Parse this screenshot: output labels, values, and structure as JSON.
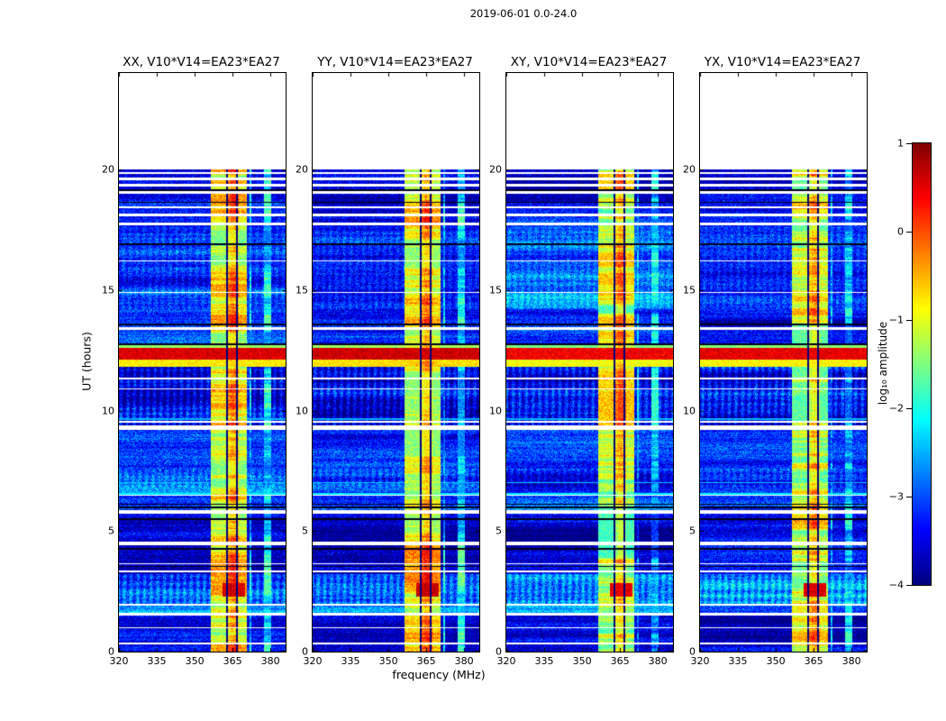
{
  "figure": {
    "title": "2019-06-01 0.0-24.0",
    "xlabel": "frequency (MHz)",
    "ylabel": "UT (hours)",
    "colorbar_label": "log₁₀ amplitude"
  },
  "panels": [
    {
      "title": "XX, V10*V14=EA23*EA27",
      "seed": 11,
      "rfi_offset": 0
    },
    {
      "title": "YY, V10*V14=EA23*EA27",
      "seed": 23,
      "rfi_offset": 0.12
    },
    {
      "title": "XY, V10*V14=EA23*EA27",
      "seed": 37,
      "rfi_offset": -0.25
    },
    {
      "title": "YX, V10*V14=EA23*EA27",
      "seed": 49,
      "rfi_offset": -0.12
    }
  ],
  "chart_data": {
    "type": "heatmap",
    "title": "2019-06-01 0.0-24.0",
    "xlabel": "frequency (MHz)",
    "ylabel": "UT (hours)",
    "colorbar_label": "log10 amplitude",
    "x_range": [
      320,
      386
    ],
    "y_range": [
      0,
      24
    ],
    "data_time_range": [
      0,
      20
    ],
    "x_ticks": [
      320,
      335,
      350,
      365,
      380
    ],
    "y_ticks": [
      0,
      5,
      10,
      15,
      20
    ],
    "colormap": "jet",
    "clim": [
      -4,
      1
    ],
    "colorbar_ticks": [
      {
        "v": 1,
        "label": "1"
      },
      {
        "v": 0,
        "label": "0"
      },
      {
        "v": -1,
        "label": "−1"
      },
      {
        "v": -2,
        "label": "−2"
      },
      {
        "v": -3,
        "label": "−3"
      },
      {
        "v": -4,
        "label": "−4"
      }
    ],
    "background_segments": [
      [
        0,
        1.62,
        -3.5
      ],
      [
        1.62,
        3.2,
        -2.8
      ],
      [
        3.2,
        5.9,
        -3.5
      ],
      [
        5.9,
        7.6,
        -3.05
      ],
      [
        7.6,
        9.3,
        -3.2
      ],
      [
        9.3,
        12.0,
        -3.4
      ],
      [
        12.7,
        14.2,
        -3.3
      ],
      [
        14.2,
        17.6,
        -3.15
      ],
      [
        17.6,
        20,
        -3.45
      ]
    ],
    "striped_segments": [
      [
        1.95,
        3.2,
        0.3
      ],
      [
        6.8,
        7.6,
        0.2
      ],
      [
        9.3,
        11.9,
        0.35
      ],
      [
        14.2,
        17.6,
        0.15
      ]
    ],
    "rfi_bands": [
      {
        "f0": 356.5,
        "f1": 370.5,
        "level": -1.0
      },
      {
        "f0": 362.8,
        "f1": 367.3,
        "level": -0.55
      },
      {
        "f0": 364.3,
        "f1": 366.2,
        "level": -0.35
      },
      {
        "f0": 371.8,
        "f1": 372.6,
        "level": -2.5
      },
      {
        "f0": 377.6,
        "f1": 380.4,
        "level": -2.3
      }
    ],
    "dark_channels": [
      362.7,
      366.7
    ],
    "bursts": [
      {
        "t0": 12.12,
        "t1": 12.58,
        "f0": 320,
        "f1": 386,
        "level": 0.55
      },
      {
        "t0": 11.8,
        "t1": 12.12,
        "f0": 320,
        "f1": 386,
        "level": -0.8
      },
      {
        "t0": 12.58,
        "t1": 12.72,
        "f0": 320,
        "f1": 386,
        "level": -1.4
      },
      {
        "t0": 2.28,
        "t1": 2.85,
        "f0": 361,
        "f1": 370,
        "level": 0.6
      }
    ],
    "bright_times": [
      [
        6.52,
        6.58,
        -2.2
      ],
      [
        6.98,
        7.04,
        -2.4
      ],
      [
        9.62,
        9.68,
        -2.5
      ]
    ],
    "flagged_times": [
      [
        0.3,
        0.36
      ],
      [
        0.98,
        1.02
      ],
      [
        1.48,
        1.6
      ],
      [
        1.9,
        1.97
      ],
      [
        3.28,
        3.38
      ],
      [
        3.62,
        3.68
      ],
      [
        4.42,
        4.55
      ],
      [
        5.72,
        5.86
      ],
      [
        6.46,
        6.52
      ],
      [
        9.18,
        9.38
      ],
      [
        9.5,
        9.58
      ],
      [
        10.88,
        10.93
      ],
      [
        11.3,
        11.35
      ],
      [
        13.34,
        13.46
      ],
      [
        14.88,
        14.93
      ],
      [
        16.18,
        16.24
      ],
      [
        17.7,
        17.8
      ],
      [
        18.05,
        18.15
      ],
      [
        18.38,
        18.48
      ],
      [
        18.98,
        19.1
      ],
      [
        19.3,
        19.4
      ],
      [
        19.55,
        19.65
      ],
      [
        19.8,
        19.9
      ]
    ],
    "dark_times": [
      [
        3.52,
        3.56
      ],
      [
        4.22,
        4.3
      ],
      [
        5.46,
        5.52
      ],
      [
        5.94,
        6.0
      ],
      [
        6.08,
        6.14
      ],
      [
        12.72,
        12.78
      ],
      [
        13.52,
        13.6
      ],
      [
        16.86,
        16.92
      ],
      [
        18.6,
        18.66
      ],
      [
        19.12,
        19.16
      ]
    ]
  }
}
